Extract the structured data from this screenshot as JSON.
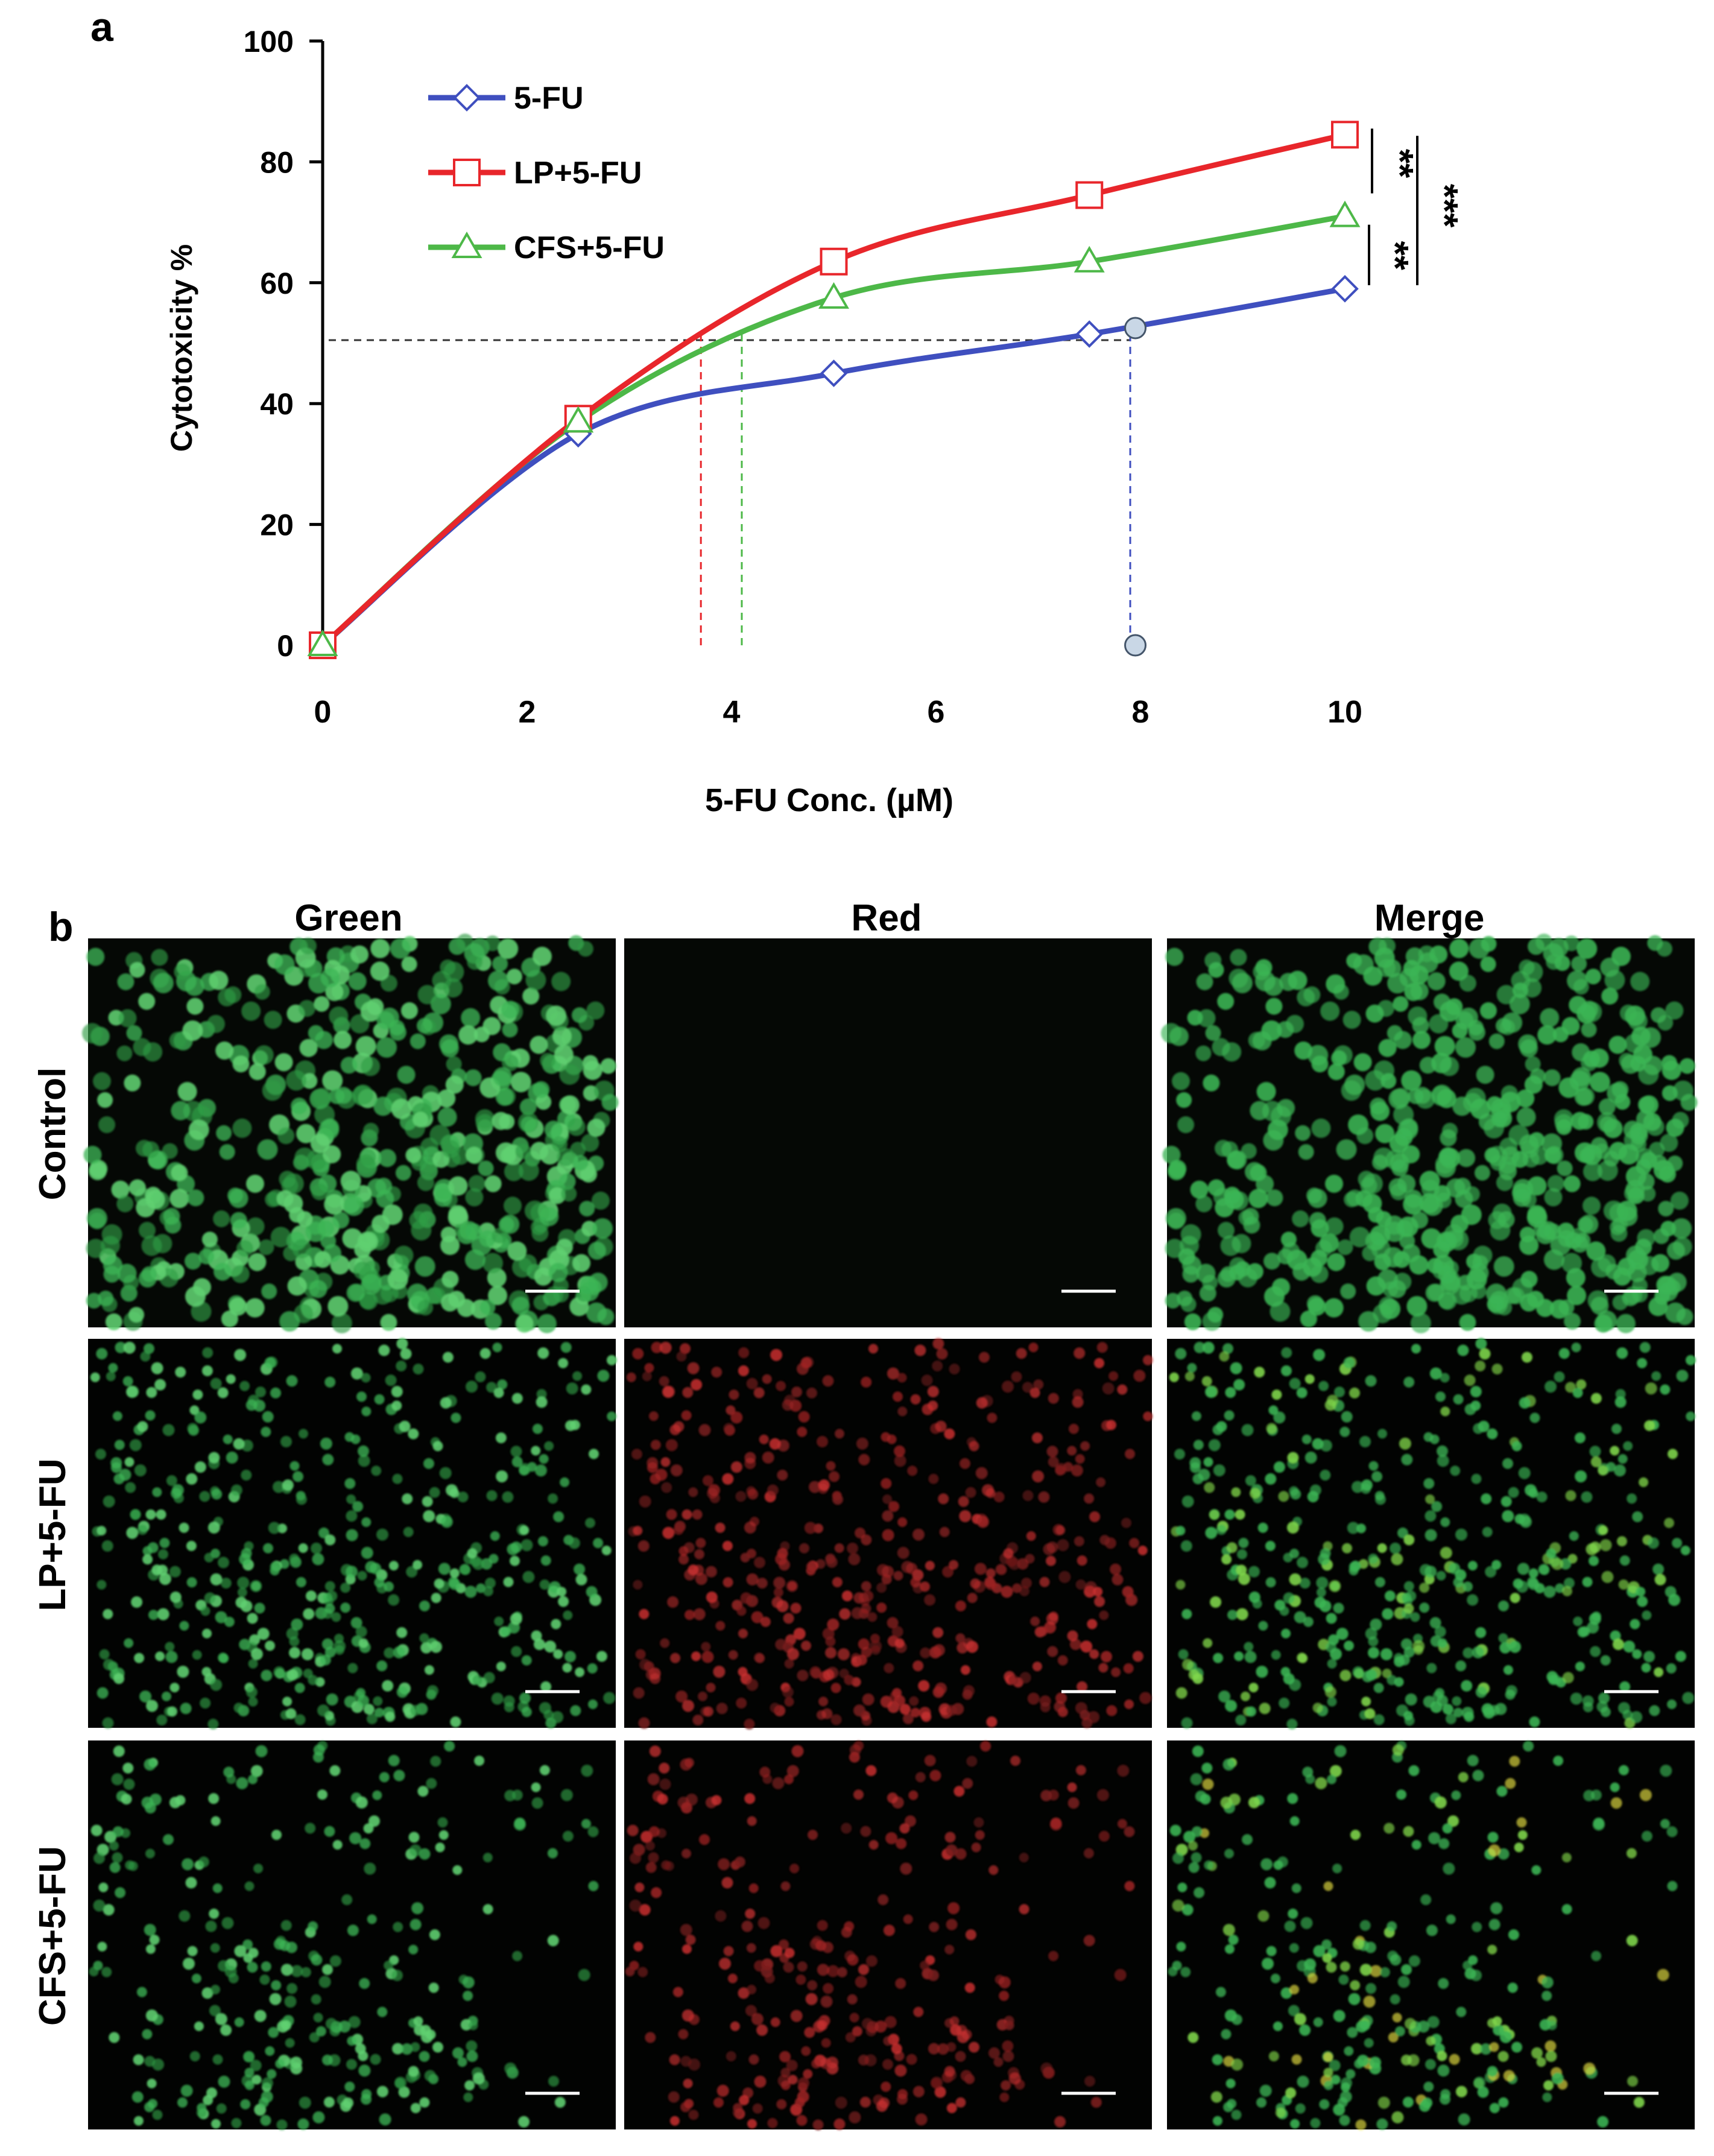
{
  "panel_labels": {
    "a": "a",
    "b": "b"
  },
  "chart_data": {
    "type": "line",
    "title": "",
    "xlabel": "5-FU Conc. (µM)",
    "ylabel": "Cytotoxicity %",
    "xlim": [
      0,
      10
    ],
    "ylim": [
      0,
      100
    ],
    "xticks": [
      0,
      2,
      4,
      6,
      8,
      10
    ],
    "yticks": [
      0,
      20,
      40,
      60,
      80,
      100
    ],
    "grid": false,
    "legend_position": "top-left",
    "x": [
      0,
      2.5,
      5,
      7.5,
      10
    ],
    "series": [
      {
        "name": "5-FU",
        "values": [
          0,
          35,
          45,
          51.5,
          59
        ],
        "color": "#3F4FBF",
        "marker": "diamond"
      },
      {
        "name": "LP+5-FU",
        "values": [
          0,
          37.5,
          63.5,
          74.5,
          84.5
        ],
        "color": "#E8262B",
        "marker": "square"
      },
      {
        "name": "CFS+5-FU",
        "values": [
          0,
          37,
          57.5,
          63.5,
          71
        ],
        "color": "#4DB848",
        "marker": "triangle"
      }
    ],
    "ic50_line": {
      "y": 50.5
    },
    "ic50_drops": [
      {
        "series": "LP+5-FU",
        "x": 3.7,
        "color": "#E8262B"
      },
      {
        "series": "CFS+5-FU",
        "x": 4.1,
        "color": "#4DB848"
      },
      {
        "series": "5-FU",
        "x": 7.9,
        "color": "#3F4FBF"
      }
    ],
    "ic50_markers": [
      {
        "x": 7.95,
        "y": 52.5
      },
      {
        "x": 7.95,
        "y": 0
      }
    ],
    "significance": [
      {
        "label": "**",
        "between": [
          "LP+5-FU",
          "CFS+5-FU"
        ]
      },
      {
        "label": "**",
        "between": [
          "CFS+5-FU",
          "5-FU"
        ]
      },
      {
        "label": "***",
        "between": [
          "LP+5-FU",
          "5-FU"
        ]
      }
    ]
  },
  "microscopy": {
    "columns": [
      "Green",
      "Red",
      "Merge"
    ],
    "rows": [
      "Control",
      "LP+5-FU",
      "CFS+5-FU"
    ]
  }
}
